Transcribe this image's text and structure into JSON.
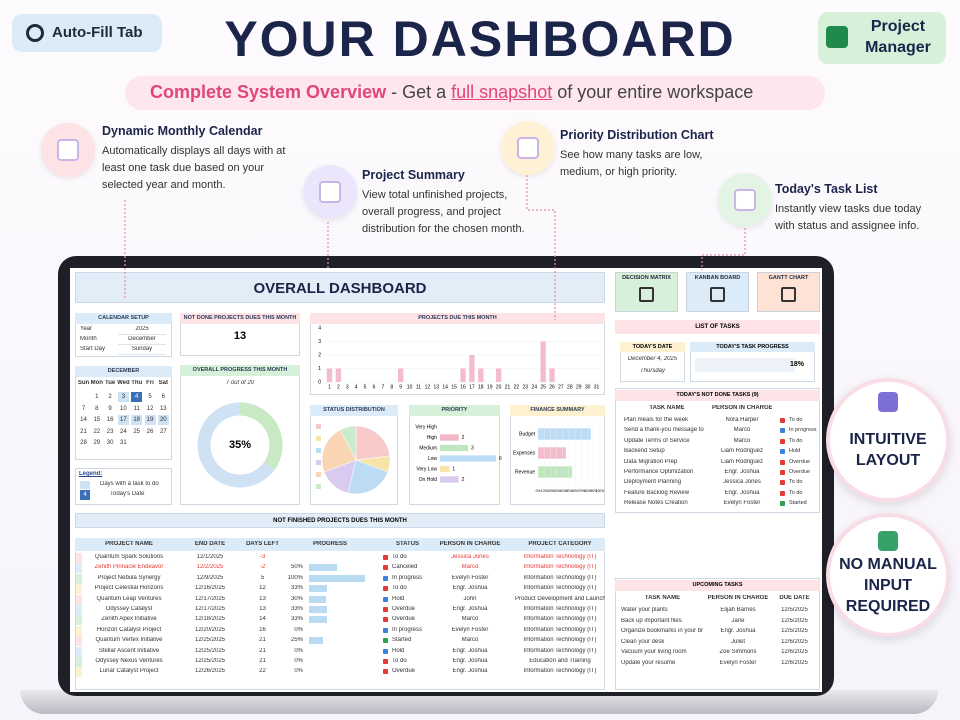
{
  "header": {
    "auto_fill": "Auto-Fill Tab",
    "title": "YOUR DASHBOARD",
    "badge": "Project Manager",
    "subtitle": {
      "lead": "Complete System Overview",
      "mid": "- Get a",
      "link": "full snapshot",
      "tail": "of your entire workspace"
    }
  },
  "features": [
    {
      "title": "Dynamic Monthly Calendar",
      "text": "Automatically displays all days with at least one task due based on your selected year and month."
    },
    {
      "title": "Project Summary",
      "text": "View total unfinished projects, overall progress, and project distribution for the chosen month."
    },
    {
      "title": "Priority Distribution Chart",
      "text": "See how many tasks are low, medium, or high priority."
    },
    {
      "title": "Today's Task List",
      "text": "Instantly view tasks due today with status and assignee info."
    }
  ],
  "badges": [
    "INTUITIVE LAYOUT",
    "NO MANUAL INPUT REQUIRED"
  ],
  "dashboard": {
    "title": "OVERALL DASHBOARD",
    "nav": [
      "DECISION MATRIX",
      "KANBAN BOARD",
      "GANTT CHART"
    ],
    "calendar_setup": {
      "title": "CALENDAR SETUP",
      "rows": [
        [
          "Year",
          "2025"
        ],
        [
          "Month",
          "December"
        ],
        [
          "Start Day",
          "Sunday"
        ]
      ]
    },
    "calendar": {
      "title": "DECEMBER",
      "weekdays": [
        "Sun",
        "Mon",
        "Tue",
        "Wed",
        "Thu",
        "Fri",
        "Sat"
      ],
      "weeks": [
        [
          null,
          1,
          2,
          3,
          4,
          5,
          6
        ],
        [
          7,
          8,
          9,
          10,
          11,
          12,
          13
        ],
        [
          14,
          15,
          16,
          17,
          18,
          19,
          20
        ],
        [
          21,
          22,
          23,
          24,
          25,
          26,
          27
        ],
        [
          28,
          29,
          30,
          31,
          null,
          null,
          null
        ]
      ],
      "task_days": [
        3,
        17,
        18,
        19,
        20
      ],
      "today": 4
    },
    "legend": {
      "title": "Legend:",
      "task_days": "Days with a task to do",
      "today_sample": "4",
      "today": "Today's Date"
    },
    "not_done": {
      "title": "NOT DONE PROJECTS DUES THIS MONTH",
      "value": 13
    },
    "progress": {
      "title": "OVERALL PROGRESS THIS MONTH",
      "caption": "7 out of 20",
      "chart_data": {
        "type": "donut",
        "values": [
          35
        ],
        "value_labels": [
          "35%"
        ],
        "color": "#c9e8c4",
        "rest_color": "#cfe2f4"
      }
    },
    "projects_due": {
      "title": "PROJECTS DUE THIS MONTH",
      "chart_data": {
        "type": "bar",
        "color": "#f4bccb",
        "x": [
          1,
          2,
          3,
          4,
          5,
          6,
          7,
          8,
          9,
          10,
          11,
          12,
          13,
          14,
          15,
          16,
          17,
          18,
          19,
          20,
          21,
          22,
          23,
          24,
          25,
          26,
          27,
          28,
          29,
          30,
          31
        ],
        "values": [
          1,
          1,
          0,
          0,
          0,
          0,
          0,
          0,
          1,
          0,
          0,
          0,
          0,
          0,
          0,
          1,
          2,
          1,
          0,
          1,
          0,
          0,
          0,
          0,
          3,
          1,
          0,
          0,
          0,
          0,
          0
        ],
        "ylim": [
          0,
          4
        ],
        "yticks": [
          0,
          1,
          2,
          3,
          4
        ]
      }
    },
    "status": {
      "title": "STATUS DISTRIBUTION",
      "chart_data": {
        "type": "pie",
        "values": [
          3,
          1,
          3,
          2,
          3,
          1
        ],
        "colors": [
          "#f7c9c9",
          "#f6e4a8",
          "#bcdcf6",
          "#d9cbef",
          "#f9d5b3",
          "#cbeccc"
        ]
      }
    },
    "priority": {
      "title": "PRIORITY",
      "chart_data": {
        "type": "hbar",
        "categories": [
          "Very High",
          "High",
          "Medium",
          "Low",
          "Very Low",
          "On Hold"
        ],
        "values": [
          0,
          2,
          3,
          6,
          1,
          2
        ],
        "colors": [
          "#f4a6b8",
          "#f4b6c6",
          "#bfe6bf",
          "#bcdcf6",
          "#f6e4a8",
          "#d9cbef"
        ]
      }
    },
    "finance": {
      "title": "FINANCE SUMMARY",
      "chart_data": {
        "type": "hbar",
        "categories": [
          "Budget",
          "Expenses",
          "Revenue"
        ],
        "values": [
          85,
          45,
          55
        ],
        "colors": [
          "#bcdcf6",
          "#f4bccb",
          "#bfe6bf"
        ],
        "xlim": [
          0,
          100
        ],
        "xticks": [
          {
            "value": 0,
            "label": "0%"
          },
          {
            "value": 10,
            "label": "10%"
          },
          {
            "value": 20,
            "label": "20%"
          },
          {
            "value": 30,
            "label": "30%"
          },
          {
            "value": 40,
            "label": "40%"
          },
          {
            "value": 50,
            "label": "50%"
          },
          {
            "value": 60,
            "label": "60%"
          },
          {
            "value": 70,
            "label": "70%"
          },
          {
            "value": 80,
            "label": "80%"
          },
          {
            "value": 90,
            "label": "90%"
          },
          {
            "value": 100,
            "label": "100%"
          }
        ]
      }
    },
    "status_colors": {
      "To do": "#e53935",
      "Canceled": "#e53935",
      "In progress": "#3b82d6",
      "Hold": "#3b82d6",
      "Overdue": "#e53935",
      "Started": "#2e9e4f"
    },
    "projects": {
      "title": "NOT FINISHED PROJECTS DUES THIS MONTH",
      "headers": [
        "PROJECT NAME",
        "END DATE",
        "DAYS LEFT",
        "PROGRESS",
        "STATUS",
        "PERSON IN CHARGE",
        "PROJECT CATEGORY"
      ],
      "rows": [
        {
          "name": "Quantum Spark Solutions",
          "end_date": "12/1/2025",
          "days_left": -3,
          "progress": null,
          "progress_label": null,
          "status": "To do",
          "person": "Jessica Jones",
          "category": "Information Technology (IT)"
        },
        {
          "name": "Zenith Pinnacle Endeavor",
          "end_date": "12/2/2025",
          "days_left": -2,
          "progress": 50,
          "progress_label": "50%",
          "status": "Canceled",
          "person": "Marco",
          "category": "Information Technology (IT)"
        },
        {
          "name": "Project Nebula Synergy",
          "end_date": "12/9/2025",
          "days_left": 5,
          "progress": 100,
          "progress_label": "100%",
          "status": "In progress",
          "person": "Evelyn Foster",
          "category": "Information Technology (IT)"
        },
        {
          "name": "Project Celestial Horizons",
          "end_date": "12/16/2025",
          "days_left": 12,
          "progress": 33,
          "progress_label": "33%",
          "status": "To do",
          "person": "Engr. Joshua",
          "category": "Information Technology (IT)"
        },
        {
          "name": "Quantum Leap Ventures",
          "end_date": "12/17/2025",
          "days_left": 13,
          "progress": 30,
          "progress_label": "30%",
          "status": "Hold",
          "person": "John",
          "category": "Product Development and Launch"
        },
        {
          "name": "Odyssey Catalyst",
          "end_date": "12/17/2025",
          "days_left": 13,
          "progress": 33,
          "progress_label": "33%",
          "status": "Overdue",
          "person": "Engr. Joshua",
          "category": "Information Technology (IT)"
        },
        {
          "name": "Zenith Apex Initiative",
          "end_date": "12/18/2025",
          "days_left": 14,
          "progress": 33,
          "progress_label": "33%",
          "status": "Overdue",
          "person": "Marco",
          "category": "Information Technology (IT)"
        },
        {
          "name": "Horizon Catalyst Project",
          "end_date": "12/20/2025",
          "days_left": 16,
          "progress": 0,
          "progress_label": "0%",
          "status": "In progress",
          "person": "Evelyn Foster",
          "category": "Information Technology (IT)"
        },
        {
          "name": "Quantum Vertex Initiative",
          "end_date": "12/25/2025",
          "days_left": 21,
          "progress": 25,
          "progress_label": "25%",
          "status": "Started",
          "person": "Marco",
          "category": "Information Technology (IT)"
        },
        {
          "name": "Stellar Ascent Initiative",
          "end_date": "12/25/2025",
          "days_left": 21,
          "progress": 0,
          "progress_label": "0%",
          "status": "Hold",
          "person": "Engr. Joshua",
          "category": "Information Technology (IT)"
        },
        {
          "name": "Odyssey Nexus Ventures",
          "end_date": "12/25/2025",
          "days_left": 21,
          "progress": 0,
          "progress_label": "0%",
          "status": "To do",
          "person": "Engr. Joshua",
          "category": "Education and Training"
        },
        {
          "name": "Lunar Catalyst Project",
          "end_date": "12/26/2025",
          "days_left": 22,
          "progress": 0,
          "progress_label": "0%",
          "status": "Overdue",
          "person": "Engr. Joshua",
          "category": "Information Technology (IT)"
        }
      ]
    },
    "task_list": {
      "title": "LIST OF TASKS",
      "date_title": "TODAY'S DATE",
      "date": "December 4, 2025",
      "weekday": "Thursday",
      "progress_title": "TODAY'S TASK PROGRESS",
      "progress": "18%"
    },
    "today_tasks": {
      "title": "TODAY'S NOT DONE TASKS (9)",
      "headers": [
        "TASK NAME",
        "PERSON IN CHARGE"
      ],
      "rows": [
        [
          "Plan meals for the week",
          "Nora Harper",
          "To do"
        ],
        [
          "Send a thank-you message to",
          "Marco",
          "In progress"
        ],
        [
          "Update Terms of Service",
          "Marco",
          "To do"
        ],
        [
          "Backend Setup",
          "Liam Rodriguez",
          "Hold"
        ],
        [
          "Data Migration Prep",
          "Liam Rodriguez",
          "Overdue"
        ],
        [
          "Performance Optimization",
          "Engr. Joshua",
          "Overdue"
        ],
        [
          "Deployment Planning",
          "Jessica Jones",
          "To do"
        ],
        [
          "Feature Backlog Review",
          "Engr. Joshua",
          "To do"
        ],
        [
          "Release Notes Creation",
          "Evelyn Foster",
          "Started"
        ]
      ]
    },
    "upcoming": {
      "title": "UPCOMING TASKS",
      "headers": [
        "TASK NAME",
        "PERSON IN CHARGE",
        "DUE DATE"
      ],
      "rows": [
        [
          "Water your plants",
          "Elijah Barnes",
          "12/5/2025"
        ],
        [
          "Back up important files",
          "Jane",
          "12/5/2025"
        ],
        [
          "Organize bookmarks in your br",
          "Engr. Joshua",
          "12/5/2025"
        ],
        [
          "Clean your desk",
          "Juliet",
          "12/6/2025"
        ],
        [
          "Vacuum your living room",
          "Zoe Simmons",
          "12/6/2025"
        ],
        [
          "Update your resume",
          "Evelyn Foster",
          "12/6/2025"
        ]
      ]
    }
  }
}
